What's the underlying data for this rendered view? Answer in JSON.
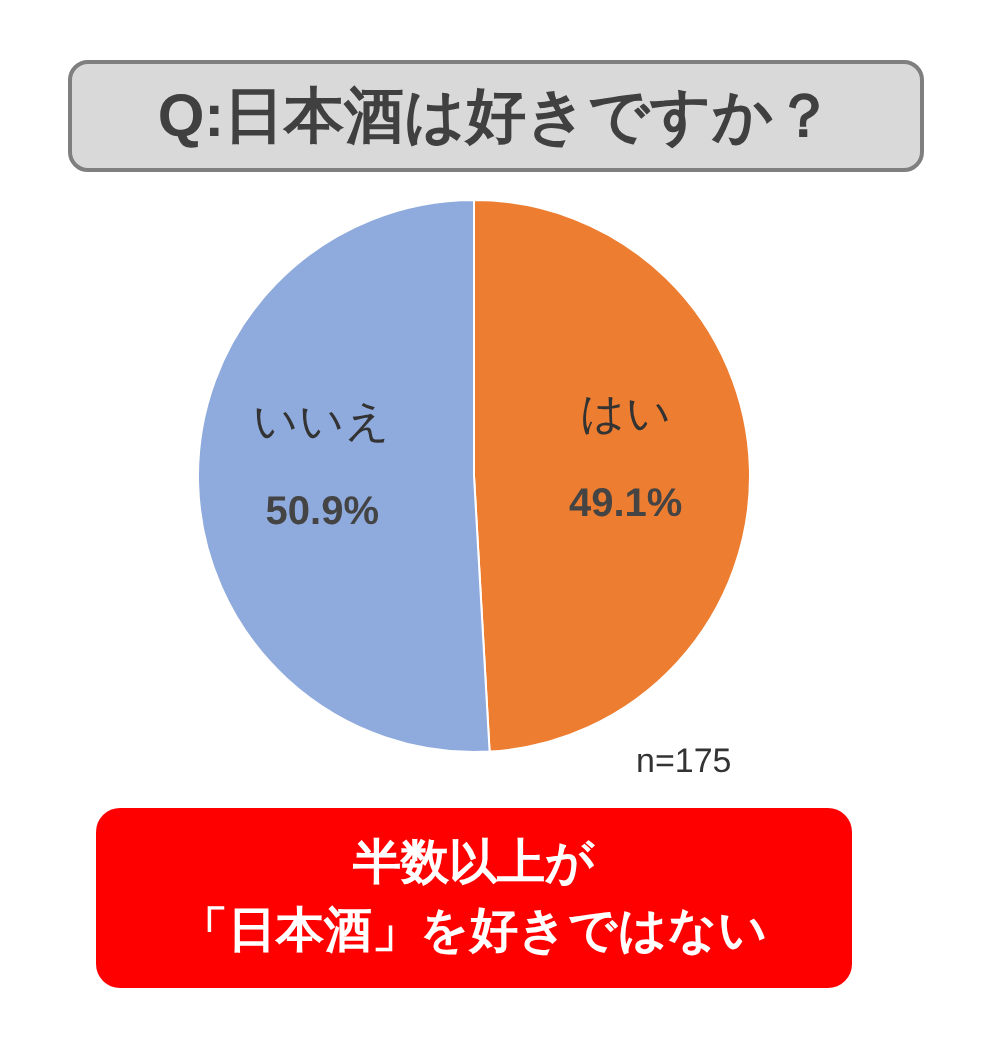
{
  "chart_data": {
    "type": "pie",
    "title": "Q:日本酒は好きですか？",
    "categories": [
      "はい",
      "いいえ"
    ],
    "values": [
      49.1,
      50.9
    ],
    "colors": [
      "#ed7d31",
      "#8faadc"
    ],
    "value_labels": [
      "49.1%",
      "50.9%"
    ],
    "annotations": [
      "n=175",
      "半数以上が",
      "「日本酒」を好きではない"
    ]
  }
}
